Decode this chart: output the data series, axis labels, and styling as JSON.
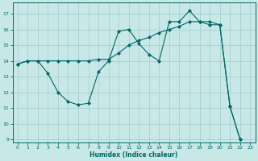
{
  "xlabel": "Humidex (Indice chaleur)",
  "bg_color": "#c8e8e8",
  "grid_color": "#a8d0d0",
  "line_color": "#006666",
  "xlim": [
    -0.5,
    23.5
  ],
  "ylim": [
    8.8,
    17.7
  ],
  "yticks": [
    9,
    10,
    11,
    12,
    13,
    14,
    15,
    16,
    17
  ],
  "xticks": [
    0,
    1,
    2,
    3,
    4,
    5,
    6,
    7,
    8,
    9,
    10,
    11,
    12,
    13,
    14,
    15,
    16,
    17,
    18,
    19,
    20,
    21,
    22,
    23
  ],
  "curve1_x": [
    0,
    1,
    2,
    3,
    4,
    5,
    6,
    7,
    8,
    9,
    10,
    11,
    12,
    13,
    14,
    15,
    16,
    17,
    18,
    19,
    20,
    21,
    22
  ],
  "curve1_y": [
    13.8,
    14.0,
    14.0,
    13.2,
    12.0,
    11.4,
    11.2,
    11.3,
    13.3,
    14.0,
    15.9,
    16.0,
    15.1,
    14.4,
    14.0,
    16.5,
    16.5,
    17.2,
    16.5,
    16.3,
    16.3,
    11.1,
    9.0
  ],
  "curve2_x": [
    0,
    1,
    2,
    3,
    4,
    5,
    6,
    7,
    8,
    9,
    10,
    11,
    12,
    13,
    14,
    15,
    16,
    17,
    18,
    19,
    20,
    21,
    22
  ],
  "curve2_y": [
    13.8,
    14.0,
    14.0,
    14.0,
    14.0,
    14.0,
    14.0,
    14.0,
    14.1,
    14.1,
    14.5,
    15.0,
    15.3,
    15.5,
    15.8,
    16.0,
    16.2,
    16.5,
    16.5,
    16.5,
    16.3,
    11.1,
    9.0
  ],
  "tick_labelsize": 4.5,
  "xlabel_fontsize": 5.5
}
